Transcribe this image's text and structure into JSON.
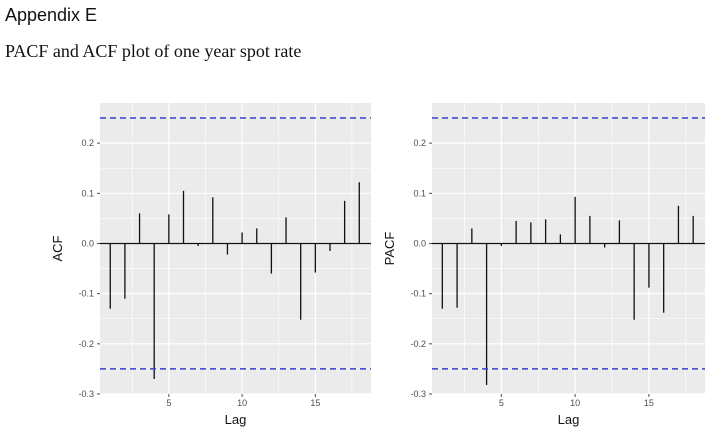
{
  "document": {
    "appendix_title": "Appendix E",
    "caption": "PACF and ACF plot of one year spot rate"
  },
  "colors": {
    "panel_background": "#ebebeb",
    "grid": "#ffffff",
    "confidence_band": "#3a3fd1",
    "bars": "#111111"
  },
  "chart_data": [
    {
      "type": "bar",
      "title": "",
      "xlabel": "Lag",
      "ylabel": "ACF",
      "xlim": [
        0.3,
        18.8
      ],
      "ylim": [
        -0.3,
        0.28
      ],
      "xticks": [
        5,
        10,
        15
      ],
      "xtick_labels": [
        "5",
        "10",
        "15"
      ],
      "yticks": [
        -0.3,
        -0.2,
        -0.1,
        0.0,
        0.1,
        0.2
      ],
      "ytick_labels": [
        "-0.3",
        "-0.2",
        "-0.1",
        "0.0",
        "0.1",
        "0.2"
      ],
      "confidence_band": [
        0.25,
        -0.25
      ],
      "lags": [
        1,
        2,
        3,
        4,
        5,
        6,
        7,
        8,
        9,
        10,
        11,
        12,
        13,
        14,
        15,
        16,
        17,
        18
      ],
      "values": [
        -0.13,
        -0.11,
        0.06,
        -0.27,
        0.058,
        0.105,
        -0.005,
        0.092,
        -0.022,
        0.022,
        0.03,
        -0.06,
        0.052,
        -0.152,
        -0.058,
        -0.015,
        0.085,
        0.122
      ],
      "grid": true
    },
    {
      "type": "bar",
      "title": "",
      "xlabel": "Lag",
      "ylabel": "PACF",
      "xlim": [
        0.3,
        18.8
      ],
      "ylim": [
        -0.3,
        0.28
      ],
      "xticks": [
        5,
        10,
        15
      ],
      "xtick_labels": [
        "5",
        "10",
        "15"
      ],
      "yticks": [
        -0.3,
        -0.2,
        -0.1,
        0.0,
        0.1,
        0.2
      ],
      "ytick_labels": [
        "-0.3",
        "-0.2",
        "-0.1",
        "0.0",
        "0.1",
        "0.2"
      ],
      "confidence_band": [
        0.25,
        -0.25
      ],
      "lags": [
        1,
        2,
        3,
        4,
        5,
        6,
        7,
        8,
        9,
        10,
        11,
        12,
        13,
        14,
        15,
        16,
        17,
        18
      ],
      "values": [
        -0.13,
        -0.128,
        0.03,
        -0.282,
        -0.005,
        0.045,
        0.042,
        0.048,
        0.018,
        0.093,
        0.055,
        -0.008,
        0.046,
        -0.152,
        -0.088,
        -0.138,
        0.075,
        0.055
      ],
      "grid": true
    }
  ]
}
